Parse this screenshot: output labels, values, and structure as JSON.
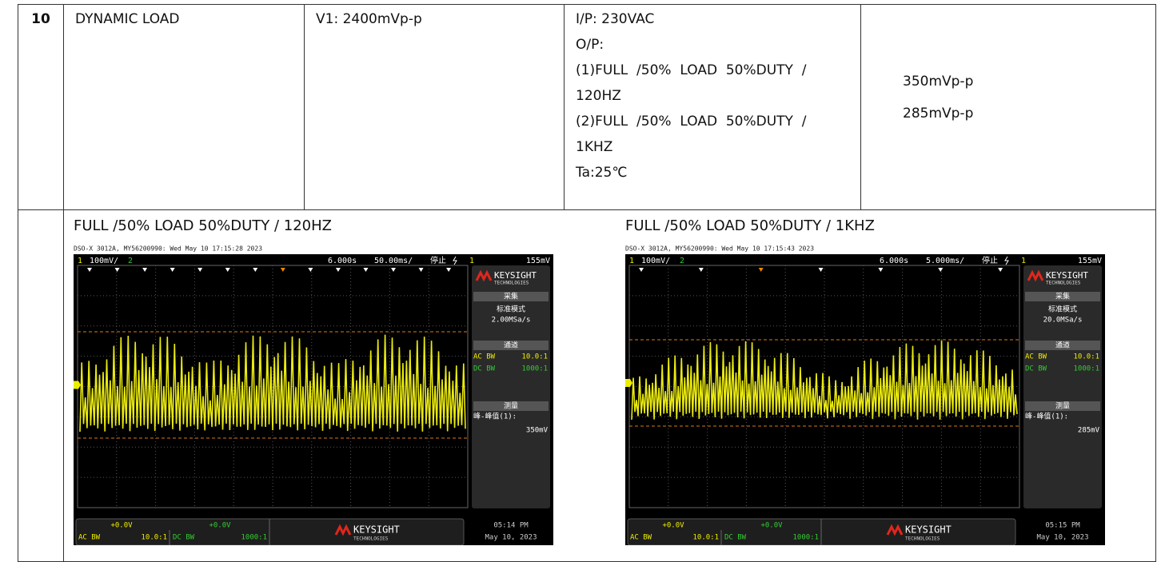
{
  "table": {
    "row_number": "10",
    "item": "DYNAMIC LOAD",
    "spec": "V1: 2400mVp-p",
    "conditions": [
      "I/P: 230VAC",
      "O/P:",
      "(1)FULL  /50%  LOAD  50%DUTY  /",
      "120HZ",
      "(2)FULL  /50%  LOAD  50%DUTY  /",
      "1KHZ",
      "Ta:25℃"
    ],
    "results": [
      "350mVp-p",
      "285mVp-p"
    ]
  },
  "captures": [
    {
      "caption": "FULL /50% LOAD 50%DUTY / 120HZ",
      "scope": {
        "header": "DSO-X 3012A, MY56200990: Wed May 10 17:15:28 2023",
        "channel": "1",
        "scale": "100mV/",
        "channel2": "2",
        "position": "6.000s",
        "timebase": "50.00ms/",
        "state": "停止",
        "trigger_channel": "1",
        "trigger_level": "155mV",
        "brand": "KEYSIGHT",
        "brand_sub": "TECHNOLOGIES",
        "acquire_title": "采集",
        "mode": "标准模式",
        "rate": "2.00MSa/s",
        "channel_title": "通道",
        "ch1_coupling": "AC BW",
        "ch1_probe": "10.0:1",
        "ch2_coupling": "DC BW",
        "ch2_probe": "1000:1",
        "measure_title": "测量",
        "measure_label": "峰-峰值(1):",
        "measure_value": "350mV",
        "ch1_offset": "+0.0V",
        "ch2_offset": "+0.0V",
        "time": "05:14 PM",
        "date": "May 10, 2023"
      }
    },
    {
      "caption": "FULL /50% LOAD 50%DUTY / 1KHZ",
      "scope": {
        "header": "DSO-X 3012A, MY56200990: Wed May 10 17:15:43 2023",
        "channel": "1",
        "scale": "100mV/",
        "channel2": "2",
        "position": "6.000s",
        "timebase": "5.000ms/",
        "state": "停止",
        "trigger_channel": "1",
        "trigger_level": "155mV",
        "brand": "KEYSIGHT",
        "brand_sub": "TECHNOLOGIES",
        "acquire_title": "采集",
        "mode": "标准模式",
        "rate": "20.0MSa/s",
        "channel_title": "通道",
        "ch1_coupling": "AC BW",
        "ch1_probe": "10.0:1",
        "ch2_coupling": "DC BW",
        "ch2_probe": "1000:1",
        "measure_title": "测量",
        "measure_label": "峰-峰值(1):",
        "measure_value": "285mV",
        "ch1_offset": "+0.0V",
        "ch2_offset": "+0.0V",
        "time": "05:15 PM",
        "date": "May 10, 2023"
      }
    }
  ]
}
